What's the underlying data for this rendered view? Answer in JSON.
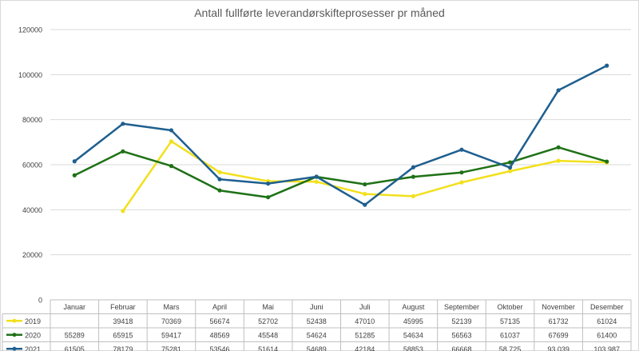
{
  "chart_data": {
    "type": "line",
    "title": "Antall fullførte leverandørskifteprosesser pr måned",
    "xlabel": "",
    "ylabel": "",
    "ylim": [
      0,
      120000
    ],
    "yticks": [
      0,
      20000,
      40000,
      60000,
      80000,
      100000,
      120000
    ],
    "ytick_labels": [
      "0",
      "20000",
      "40000",
      "60000",
      "80000",
      "100000",
      "120000"
    ],
    "grid": true,
    "legend": "data-table-rows",
    "categories": [
      "Januar",
      "Februar",
      "Mars",
      "April",
      "Mai",
      "Juni",
      "Juli",
      "August",
      "September",
      "Oktober",
      "November",
      "Desember"
    ],
    "series": [
      {
        "name": "2019",
        "color": "#f2e01c",
        "values": [
          null,
          39418,
          70369,
          56674,
          52702,
          52438,
          47010,
          45995,
          52139,
          57135,
          61732,
          61024
        ],
        "table": [
          "",
          "39418",
          "70369",
          "56674",
          "52702",
          "52438",
          "47010",
          "45995",
          "52139",
          "57135",
          "61732",
          "61024"
        ]
      },
      {
        "name": "2020",
        "color": "#1e7116",
        "values": [
          55289,
          65915,
          59417,
          48569,
          45548,
          54624,
          51285,
          54634,
          56563,
          61037,
          67699,
          61400
        ],
        "table": [
          "55289",
          "65915",
          "59417",
          "48569",
          "45548",
          "54624",
          "51285",
          "54634",
          "56563",
          "61037",
          "67699",
          "61400"
        ]
      },
      {
        "name": "2021",
        "color": "#1f5f8f",
        "values": [
          61505,
          78179,
          75281,
          53546,
          51614,
          54689,
          42184,
          58853,
          66668,
          58725,
          93039,
          103987
        ],
        "table": [
          "61505",
          "78179",
          "75281",
          "53546",
          "51614",
          "54689",
          "42184",
          "58853",
          "66668",
          "58 725",
          "93 039",
          "103 987"
        ]
      }
    ]
  }
}
